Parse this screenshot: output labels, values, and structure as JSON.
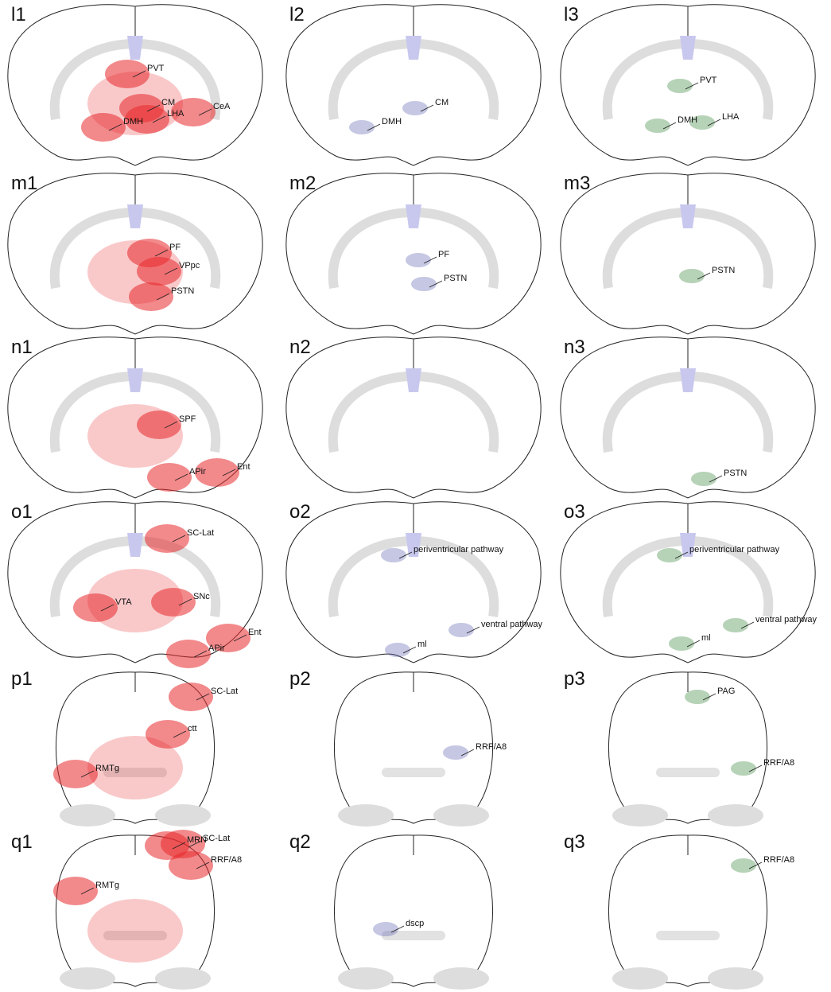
{
  "panels": [
    {
      "id": "l1",
      "labels": [
        "PVT",
        "CM",
        "DMH",
        "LHA",
        "CeA"
      ]
    },
    {
      "id": "l2",
      "labels": [
        "CM",
        "DMH"
      ]
    },
    {
      "id": "l3",
      "labels": [
        "PVT",
        "DMH",
        "LHA"
      ]
    },
    {
      "id": "m1",
      "labels": [
        "PF",
        "VPpc",
        "PSTN"
      ]
    },
    {
      "id": "m2",
      "labels": [
        "PF",
        "PSTN"
      ]
    },
    {
      "id": "m3",
      "labels": [
        "PSTN"
      ]
    },
    {
      "id": "n1",
      "labels": [
        "SPF",
        "APir",
        "Ent"
      ]
    },
    {
      "id": "n2",
      "labels": []
    },
    {
      "id": "n3",
      "labels": [
        "PSTN"
      ]
    },
    {
      "id": "o1",
      "labels": [
        "SC-Lat",
        "SNc",
        "VTA",
        "Ent",
        "APir"
      ]
    },
    {
      "id": "o2",
      "labels": [
        "periventricular pathway",
        "ventral pathway",
        "ml"
      ]
    },
    {
      "id": "o3",
      "labels": [
        "periventricular pathway",
        "ventral pathway",
        "ml"
      ]
    },
    {
      "id": "p1",
      "labels": [
        "SC-Lat",
        "ctt",
        "RMTg"
      ]
    },
    {
      "id": "p2",
      "labels": [
        "RRF/A8"
      ]
    },
    {
      "id": "p3",
      "labels": [
        "PAG",
        "RRF/A8"
      ]
    },
    {
      "id": "q1",
      "labels": [
        "SC-Lat",
        "MRN",
        "RRF/A8",
        "RMTg"
      ]
    },
    {
      "id": "q2",
      "labels": [
        "dscp"
      ]
    },
    {
      "id": "q3",
      "labels": [
        "RRF/A8"
      ]
    }
  ]
}
